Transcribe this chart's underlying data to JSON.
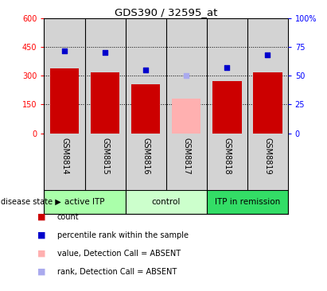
{
  "title": "GDS390 / 32595_at",
  "samples": [
    "GSM8814",
    "GSM8815",
    "GSM8816",
    "GSM8817",
    "GSM8818",
    "GSM8819"
  ],
  "counts": [
    340,
    320,
    255,
    180,
    272,
    320
  ],
  "ranks": [
    72,
    70,
    55,
    50,
    57,
    68
  ],
  "absent": [
    false,
    false,
    false,
    true,
    false,
    false
  ],
  "bar_color_normal": "#cc0000",
  "bar_color_absent": "#ffb0b0",
  "rank_color_normal": "#0000cc",
  "rank_color_absent": "#aaaaee",
  "ylim_left": [
    0,
    600
  ],
  "ylim_right": [
    0,
    100
  ],
  "yticks_left": [
    0,
    150,
    300,
    450,
    600
  ],
  "yticks_right": [
    0,
    25,
    50,
    75,
    100
  ],
  "ytick_labels_left": [
    "0",
    "150",
    "300",
    "450",
    "600"
  ],
  "ytick_labels_right": [
    "0",
    "25",
    "50",
    "75",
    "100%"
  ],
  "groups": [
    {
      "label": "active ITP",
      "start": 0,
      "end": 2,
      "color": "#aaffaa"
    },
    {
      "label": "control",
      "start": 2,
      "end": 4,
      "color": "#ccffcc"
    },
    {
      "label": "ITP in remission",
      "start": 4,
      "end": 6,
      "color": "#33dd66"
    }
  ],
  "disease_state_label": "disease state",
  "legend_items": [
    {
      "color": "#cc0000",
      "label": "count"
    },
    {
      "color": "#0000cc",
      "label": "percentile rank within the sample"
    },
    {
      "color": "#ffb0b0",
      "label": "value, Detection Call = ABSENT"
    },
    {
      "color": "#aaaaee",
      "label": "rank, Detection Call = ABSENT"
    }
  ],
  "bg_color": "#d3d3d3",
  "dotted_line_color": "black"
}
